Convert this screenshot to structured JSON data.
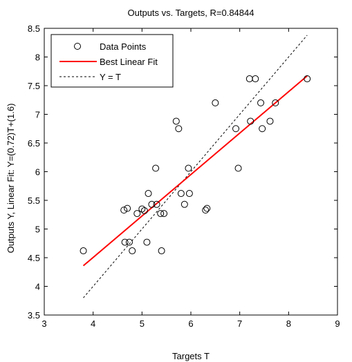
{
  "chart_data": {
    "type": "scatter",
    "title": "Outputs vs. Targets, R=0.84844",
    "xlabel": "Targets T",
    "ylabel": "Outputs Y,  Linear Fit: Y=(0.72)T+(1.6)",
    "xlim": [
      3,
      9
    ],
    "ylim": [
      3.5,
      8.5
    ],
    "xticks": [
      3,
      4,
      5,
      6,
      7,
      8,
      9
    ],
    "yticks": [
      3.5,
      4,
      4.5,
      5,
      5.5,
      6,
      6.5,
      7,
      7.5,
      8,
      8.5
    ],
    "grid": false,
    "legend_position": "top-left",
    "legend": [
      {
        "label": "Data Points",
        "style": "circle",
        "color": "#000000"
      },
      {
        "label": "Best Linear Fit",
        "style": "solid-line",
        "color": "#ff0000"
      },
      {
        "label": "Y = T",
        "style": "dashed-line",
        "color": "#000000"
      }
    ],
    "series": [
      {
        "name": "Data Points",
        "x": [
          3.8,
          4.63,
          4.65,
          4.7,
          4.74,
          4.8,
          4.9,
          5.0,
          5.05,
          5.1,
          5.13,
          5.2,
          5.28,
          5.3,
          5.38,
          5.4,
          5.45,
          5.7,
          5.75,
          5.8,
          5.87,
          5.95,
          5.97,
          6.3,
          6.33,
          6.5,
          6.92,
          6.97,
          7.2,
          7.22,
          7.32,
          7.43,
          7.46,
          7.62,
          7.73,
          8.38
        ],
        "y": [
          4.62,
          5.33,
          4.77,
          5.36,
          4.77,
          4.62,
          5.27,
          5.35,
          5.32,
          4.77,
          5.62,
          5.43,
          6.06,
          5.43,
          5.27,
          4.62,
          5.27,
          6.88,
          6.75,
          5.62,
          5.43,
          6.06,
          5.62,
          5.33,
          5.36,
          7.2,
          6.75,
          6.06,
          7.62,
          6.88,
          7.62,
          7.2,
          6.75,
          6.88,
          7.2,
          7.62
        ]
      },
      {
        "name": "Best Linear Fit",
        "x": [
          3.8,
          8.38
        ],
        "y": [
          4.36,
          7.67
        ]
      },
      {
        "name": "Y = T",
        "x": [
          3.8,
          8.38
        ],
        "y": [
          3.8,
          8.38
        ]
      }
    ],
    "colors": {
      "fit": "#ff0000",
      "identity": "#000000",
      "points": "#000000"
    }
  }
}
